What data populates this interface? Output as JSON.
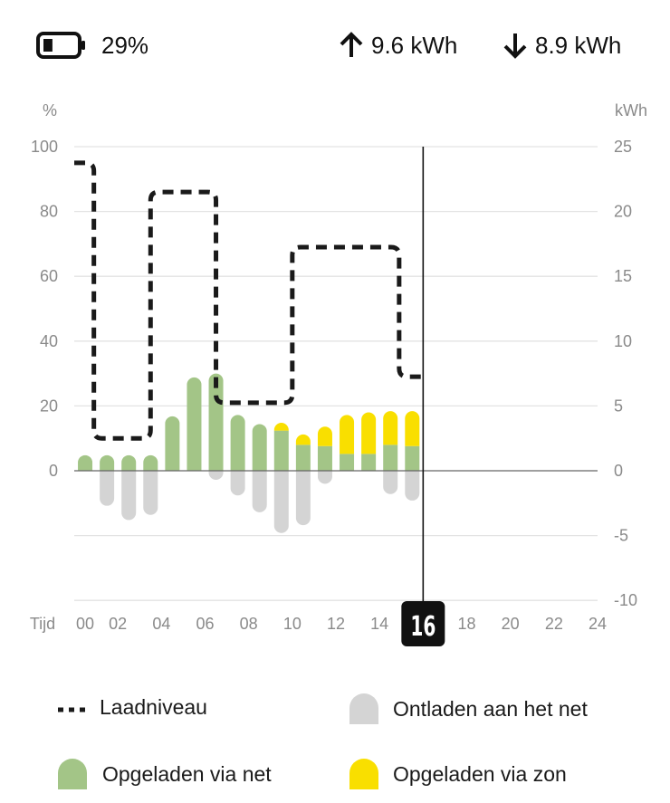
{
  "header": {
    "battery_percent": "29%",
    "battery_level": 0.29,
    "charged_total": "9.6 kWh",
    "discharged_total": "8.9 kWh"
  },
  "chart_data": {
    "type": "bar",
    "left_axis_unit": "%",
    "right_axis_unit": "kWh",
    "x_axis_label": "Tijd",
    "left_ticks": [
      "100",
      "80",
      "60",
      "40",
      "20",
      "0"
    ],
    "right_ticks": [
      "25",
      "20",
      "15",
      "10",
      "5",
      "0",
      "-5",
      "-10"
    ],
    "x_ticks": [
      "00",
      "02",
      "04",
      "06",
      "08",
      "10",
      "12",
      "14",
      "16",
      "18",
      "20",
      "22",
      "24"
    ],
    "current_hour_label": "16",
    "current_hour": 16,
    "ylim_percent": [
      0,
      100
    ],
    "ylim_kwh": [
      -10,
      25
    ],
    "hours": [
      0,
      1,
      2,
      3,
      4,
      5,
      6,
      7,
      8,
      9,
      10,
      11,
      12,
      13,
      14,
      15
    ],
    "series": [
      {
        "name": "Opgeladen via net",
        "color": "#a3c587",
        "values": [
          1.2,
          1.2,
          1.2,
          1.2,
          4.2,
          7.2,
          7.5,
          4.3,
          3.6,
          3.1,
          2.0,
          1.9,
          1.3,
          1.3,
          2.0,
          1.9
        ]
      },
      {
        "name": "Opgeladen via zon",
        "color": "#f9df00",
        "values": [
          0,
          0,
          0,
          0,
          0,
          0,
          0,
          0,
          0,
          0.6,
          0.8,
          1.5,
          3.0,
          3.2,
          2.6,
          2.7
        ]
      },
      {
        "name": "Ontladen aan het net",
        "color": "#d4d4d4",
        "values": [
          0,
          -2.7,
          -3.8,
          -3.4,
          0,
          0,
          -0.7,
          -1.9,
          -3.2,
          -4.8,
          -4.2,
          -1.0,
          0,
          0,
          -1.8,
          -2.3
        ]
      }
    ],
    "laadniveau": {
      "name": "Laadniveau",
      "color": "#1a1a1a",
      "x": [
        0,
        0.9,
        0.9,
        3.5,
        3.5,
        6.5,
        6.5,
        10.0,
        10.0,
        14.9,
        14.9,
        16.0
      ],
      "y": [
        95,
        95,
        10,
        10,
        86,
        86,
        21,
        21,
        69,
        69,
        29,
        29
      ]
    },
    "legend": [
      "Laadniveau",
      "Ontladen aan het net",
      "Opgeladen via net",
      "Opgeladen via zon"
    ],
    "grid": true
  },
  "legend": {
    "laadniveau": "Laadniveau",
    "ontladen": "Ontladen aan het net",
    "opgeladen_net": "Opgeladen via net",
    "opgeladen_zon": "Opgeladen via zon"
  },
  "colors": {
    "net": "#a3c587",
    "zon": "#f9df00",
    "ontladen": "#d4d4d4",
    "line": "#1a1a1a",
    "grid": "#e3e3e3",
    "axis_text": "#8a8a8a"
  }
}
